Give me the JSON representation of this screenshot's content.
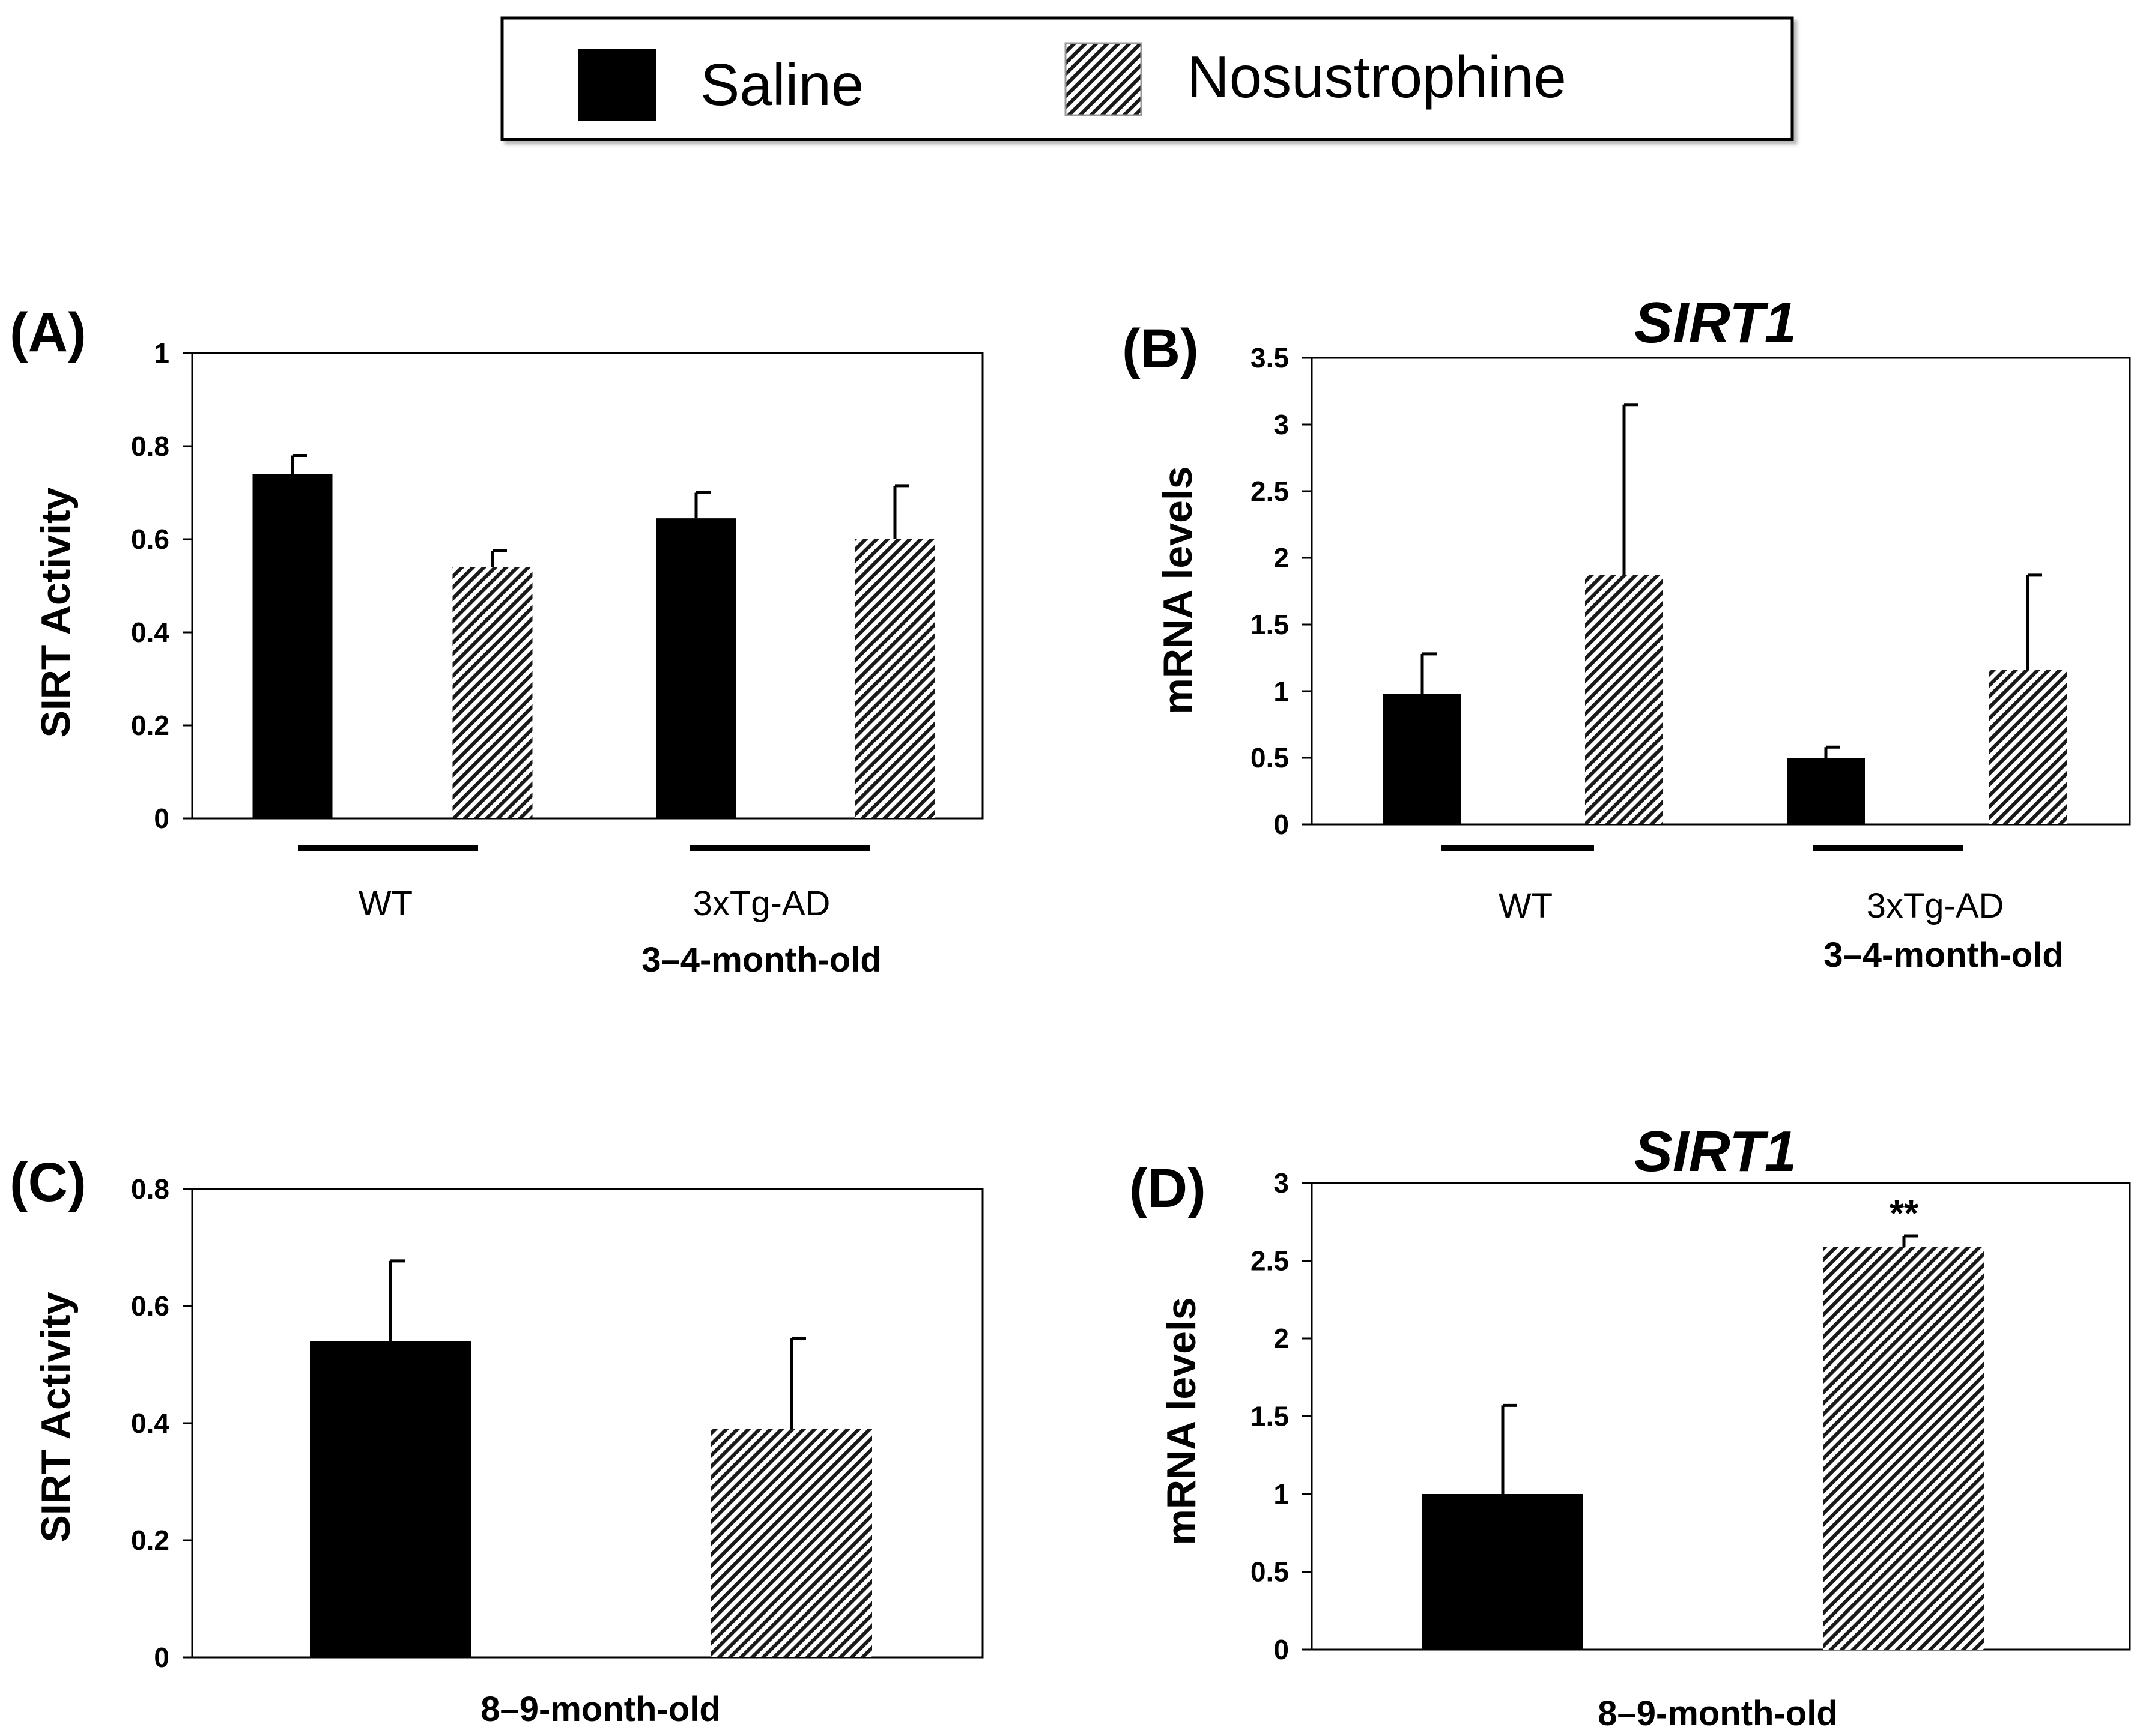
{
  "legend": {
    "items": [
      {
        "label": "Saline",
        "color": "#000000",
        "pattern": "solid"
      },
      {
        "label": "Nosustrophine",
        "color": "#000000",
        "pattern": "hatch"
      }
    ]
  },
  "chart_data": [
    {
      "panel": "(A)",
      "type": "bar",
      "title": "",
      "ylabel": "SIRT Activity",
      "xlabel": "3–4-month-old",
      "ylim": [
        0,
        1
      ],
      "yticks": [
        0,
        0.2,
        0.4,
        0.6,
        0.8,
        1
      ],
      "ytick_labels": [
        "0",
        "0.2",
        "0.4",
        "0.6",
        "0.8",
        "1"
      ],
      "categories": [
        "WT",
        "3xTg-AD"
      ],
      "series": [
        {
          "name": "Saline",
          "values": [
            0.74,
            0.645
          ],
          "errors": [
            0.04,
            0.055
          ]
        },
        {
          "name": "Nosustrophine",
          "values": [
            0.54,
            0.6
          ],
          "errors": [
            0.035,
            0.115
          ]
        }
      ],
      "annotations": []
    },
    {
      "panel": "(B)",
      "type": "bar",
      "title": "SIRT1",
      "ylabel": "mRNA levels",
      "xlabel": "3–4-month-old",
      "ylim": [
        0,
        3.5
      ],
      "yticks": [
        0,
        0.5,
        1,
        1.5,
        2,
        2.5,
        3,
        3.5
      ],
      "ytick_labels": [
        "0",
        "0.5",
        "1",
        "1.5",
        "2",
        "2.5",
        "3",
        "3.5"
      ],
      "categories": [
        "WT",
        "3xTg-AD"
      ],
      "series": [
        {
          "name": "Saline",
          "values": [
            0.98,
            0.5
          ],
          "errors": [
            0.3,
            0.08
          ]
        },
        {
          "name": "Nosustrophine",
          "values": [
            1.87,
            1.16
          ],
          "errors": [
            1.28,
            0.71
          ]
        }
      ],
      "annotations": []
    },
    {
      "panel": "(C)",
      "type": "bar",
      "title": "",
      "ylabel": "SIRT Activity",
      "xlabel": "8–9-month-old",
      "ylim": [
        0,
        0.8
      ],
      "yticks": [
        0,
        0.2,
        0.4,
        0.6,
        0.8
      ],
      "ytick_labels": [
        "0",
        "0.2",
        "0.4",
        "0.6",
        "0.8"
      ],
      "categories": [
        ""
      ],
      "series": [
        {
          "name": "Saline",
          "values": [
            0.54
          ],
          "errors": [
            0.137
          ]
        },
        {
          "name": "Nosustrophine",
          "values": [
            0.39
          ],
          "errors": [
            0.155
          ]
        }
      ],
      "annotations": []
    },
    {
      "panel": "(D)",
      "type": "bar",
      "title": "SIRT1",
      "ylabel": "mRNA levels",
      "xlabel": "8–9-month-old",
      "ylim": [
        0,
        3
      ],
      "yticks": [
        0,
        0.5,
        1,
        1.5,
        2,
        2.5,
        3
      ],
      "ytick_labels": [
        "0",
        "0.5",
        "1",
        "1.5",
        "2",
        "2.5",
        "3"
      ],
      "categories": [
        ""
      ],
      "series": [
        {
          "name": "Saline",
          "values": [
            1.0
          ],
          "errors": [
            0.57
          ]
        },
        {
          "name": "Nosustrophine",
          "values": [
            2.59
          ],
          "errors": [
            0.07
          ]
        }
      ],
      "annotations": [
        {
          "series": 1,
          "category": 0,
          "text": "**"
        }
      ]
    }
  ]
}
